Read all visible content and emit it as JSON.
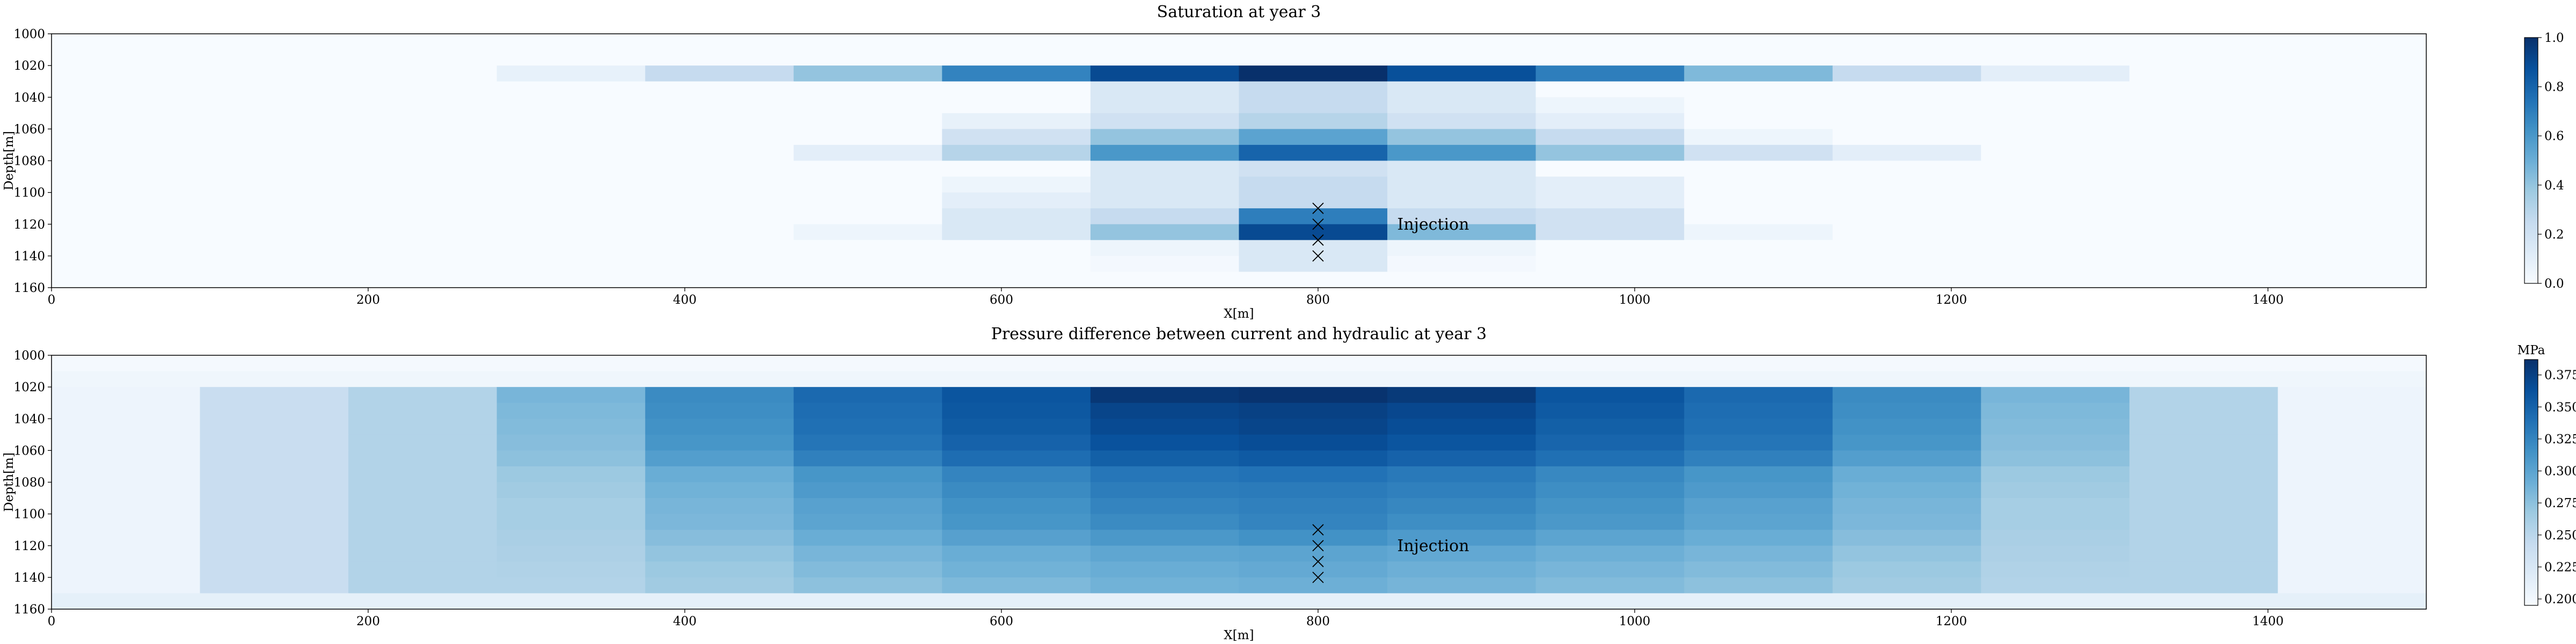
{
  "colors": {
    "cmap": [
      "#f7fbff",
      "#deebf7",
      "#c6dbef",
      "#9ecae1",
      "#6baed6",
      "#4292c6",
      "#2171b5",
      "#08519c",
      "#08306b"
    ],
    "marker": "#000000"
  },
  "chart_data": [
    {
      "type": "heatmap",
      "title": "Saturation at year 3",
      "xlabel": "X[m]",
      "ylabel": "Depth[m]",
      "xlim": [
        0,
        1500
      ],
      "ylim": [
        1160,
        1000
      ],
      "xticks": [
        "0",
        "200",
        "400",
        "600",
        "800",
        "1000",
        "1200",
        "1400"
      ],
      "yticks": [
        "1000",
        "1020",
        "1040",
        "1060",
        "1080",
        "1100",
        "1120",
        "1140",
        "1160"
      ],
      "x_edges": [
        0,
        93.75,
        187.5,
        281.25,
        375,
        468.75,
        562.5,
        656.25,
        750,
        843.75,
        937.5,
        1031.25,
        1125,
        1218.75,
        1312.5,
        1406.25,
        1500
      ],
      "y_edges": [
        1000,
        1020,
        1030,
        1040,
        1050,
        1060,
        1070,
        1080,
        1090,
        1100,
        1110,
        1120,
        1130,
        1140,
        1150,
        1160
      ],
      "values": [
        [
          0.0,
          0.0,
          0.0,
          0.0,
          0.0,
          0.0,
          0.0,
          0.0,
          0.0,
          0.0,
          0.0,
          0.0,
          0.0,
          0.0,
          0.0,
          0.0
        ],
        [
          0.0,
          0.0,
          0.0,
          0.08,
          0.25,
          0.4,
          0.68,
          0.9,
          1.0,
          0.88,
          0.7,
          0.45,
          0.25,
          0.1,
          0.0,
          0.0
        ],
        [
          0.0,
          0.0,
          0.0,
          0.0,
          0.0,
          0.0,
          0.0,
          0.15,
          0.25,
          0.15,
          0.0,
          0.0,
          0.0,
          0.0,
          0.0,
          0.0
        ],
        [
          0.0,
          0.0,
          0.0,
          0.0,
          0.0,
          0.0,
          0.0,
          0.15,
          0.25,
          0.15,
          0.05,
          0.0,
          0.0,
          0.0,
          0.0,
          0.0
        ],
        [
          0.0,
          0.0,
          0.0,
          0.0,
          0.0,
          0.0,
          0.08,
          0.2,
          0.3,
          0.2,
          0.1,
          0.0,
          0.0,
          0.0,
          0.0,
          0.0
        ],
        [
          0.0,
          0.0,
          0.0,
          0.0,
          0.0,
          0.0,
          0.2,
          0.4,
          0.55,
          0.4,
          0.25,
          0.05,
          0.0,
          0.0,
          0.0,
          0.0
        ],
        [
          0.0,
          0.0,
          0.0,
          0.0,
          0.0,
          0.1,
          0.3,
          0.6,
          0.8,
          0.6,
          0.4,
          0.2,
          0.1,
          0.0,
          0.0,
          0.0
        ],
        [
          0.0,
          0.0,
          0.0,
          0.0,
          0.0,
          0.0,
          0.0,
          0.15,
          0.2,
          0.15,
          0.0,
          0.0,
          0.0,
          0.0,
          0.0,
          0.0
        ],
        [
          0.0,
          0.0,
          0.0,
          0.0,
          0.0,
          0.0,
          0.05,
          0.15,
          0.25,
          0.15,
          0.1,
          0.0,
          0.0,
          0.0,
          0.0,
          0.0
        ],
        [
          0.0,
          0.0,
          0.0,
          0.0,
          0.0,
          0.0,
          0.1,
          0.15,
          0.25,
          0.15,
          0.1,
          0.0,
          0.0,
          0.0,
          0.0,
          0.0
        ],
        [
          0.0,
          0.0,
          0.0,
          0.0,
          0.0,
          0.0,
          0.15,
          0.25,
          0.7,
          0.25,
          0.2,
          0.0,
          0.0,
          0.0,
          0.0,
          0.0
        ],
        [
          0.0,
          0.0,
          0.0,
          0.0,
          0.0,
          0.05,
          0.15,
          0.4,
          0.9,
          0.45,
          0.2,
          0.05,
          0.0,
          0.0,
          0.0,
          0.0
        ],
        [
          0.0,
          0.0,
          0.0,
          0.0,
          0.0,
          0.0,
          0.0,
          0.05,
          0.15,
          0.05,
          0.0,
          0.0,
          0.0,
          0.0,
          0.0,
          0.0
        ],
        [
          0.0,
          0.0,
          0.0,
          0.0,
          0.0,
          0.0,
          0.0,
          0.02,
          0.15,
          0.02,
          0.0,
          0.0,
          0.0,
          0.0,
          0.0,
          0.0
        ],
        [
          0.0,
          0.0,
          0.0,
          0.0,
          0.0,
          0.0,
          0.0,
          0.0,
          0.0,
          0.0,
          0.0,
          0.0,
          0.0,
          0.0,
          0.0,
          0.0
        ]
      ],
      "colorbar": {
        "vmin": 0.0,
        "vmax": 1.0,
        "ticks": [
          "0.0",
          "0.2",
          "0.4",
          "0.6",
          "0.8",
          "1.0"
        ],
        "tick_values": [
          0.0,
          0.2,
          0.4,
          0.6,
          0.8,
          1.0
        ],
        "label": ""
      },
      "markers": {
        "symbol": "x",
        "x": [
          800,
          800,
          800,
          800
        ],
        "y": [
          1110,
          1120,
          1130,
          1140
        ]
      },
      "annotation": {
        "text": "Injection",
        "x": 850,
        "y": 1120
      }
    },
    {
      "type": "heatmap",
      "title": "Pressure difference between current and hydraulic at year 3",
      "xlabel": "X[m]",
      "ylabel": "Depth[m]",
      "xlim": [
        0,
        1500
      ],
      "ylim": [
        1160,
        1000
      ],
      "xticks": [
        "0",
        "200",
        "400",
        "600",
        "800",
        "1000",
        "1200",
        "1400"
      ],
      "yticks": [
        "1000",
        "1020",
        "1040",
        "1060",
        "1080",
        "1100",
        "1120",
        "1140",
        "1160"
      ],
      "x_edges": [
        0,
        93.75,
        187.5,
        281.25,
        375,
        468.75,
        562.5,
        656.25,
        750,
        843.75,
        937.5,
        1031.25,
        1125,
        1218.75,
        1312.5,
        1406.25,
        1500
      ],
      "y_edges": [
        1000,
        1010,
        1020,
        1030,
        1040,
        1050,
        1060,
        1070,
        1080,
        1090,
        1100,
        1110,
        1120,
        1130,
        1140,
        1150,
        1160
      ],
      "values": [
        [
          0.198,
          0.198,
          0.198,
          0.198,
          0.198,
          0.198,
          0.198,
          0.198,
          0.198,
          0.198,
          0.198,
          0.198,
          0.198,
          0.198,
          0.198,
          0.198
        ],
        [
          0.203,
          0.203,
          0.203,
          0.203,
          0.203,
          0.203,
          0.203,
          0.203,
          0.203,
          0.203,
          0.203,
          0.203,
          0.203,
          0.203,
          0.203,
          0.203
        ],
        [
          0.205,
          0.24,
          0.255,
          0.285,
          0.32,
          0.345,
          0.36,
          0.382,
          0.385,
          0.38,
          0.36,
          0.345,
          0.32,
          0.285,
          0.255,
          0.205
        ],
        [
          0.205,
          0.24,
          0.255,
          0.282,
          0.318,
          0.342,
          0.358,
          0.372,
          0.375,
          0.37,
          0.356,
          0.342,
          0.318,
          0.282,
          0.255,
          0.205
        ],
        [
          0.205,
          0.24,
          0.255,
          0.28,
          0.315,
          0.34,
          0.355,
          0.368,
          0.372,
          0.366,
          0.352,
          0.34,
          0.315,
          0.28,
          0.255,
          0.205
        ],
        [
          0.205,
          0.24,
          0.255,
          0.278,
          0.312,
          0.336,
          0.35,
          0.362,
          0.366,
          0.36,
          0.348,
          0.336,
          0.312,
          0.278,
          0.255,
          0.205
        ],
        [
          0.205,
          0.24,
          0.255,
          0.275,
          0.305,
          0.328,
          0.342,
          0.352,
          0.356,
          0.35,
          0.34,
          0.328,
          0.305,
          0.275,
          0.255,
          0.205
        ],
        [
          0.205,
          0.24,
          0.255,
          0.268,
          0.292,
          0.312,
          0.325,
          0.335,
          0.338,
          0.333,
          0.322,
          0.312,
          0.292,
          0.268,
          0.255,
          0.205
        ],
        [
          0.205,
          0.24,
          0.255,
          0.265,
          0.288,
          0.308,
          0.32,
          0.33,
          0.332,
          0.328,
          0.318,
          0.308,
          0.288,
          0.265,
          0.255,
          0.205
        ],
        [
          0.205,
          0.24,
          0.255,
          0.262,
          0.285,
          0.302,
          0.315,
          0.325,
          0.328,
          0.323,
          0.313,
          0.302,
          0.285,
          0.262,
          0.255,
          0.205
        ],
        [
          0.205,
          0.24,
          0.255,
          0.262,
          0.283,
          0.3,
          0.312,
          0.32,
          0.325,
          0.318,
          0.31,
          0.3,
          0.283,
          0.262,
          0.255,
          0.205
        ],
        [
          0.205,
          0.24,
          0.255,
          0.26,
          0.278,
          0.292,
          0.303,
          0.31,
          0.315,
          0.308,
          0.3,
          0.292,
          0.278,
          0.26,
          0.255,
          0.205
        ],
        [
          0.205,
          0.24,
          0.255,
          0.258,
          0.272,
          0.285,
          0.292,
          0.298,
          0.3,
          0.296,
          0.29,
          0.285,
          0.272,
          0.258,
          0.255,
          0.205
        ],
        [
          0.205,
          0.24,
          0.255,
          0.256,
          0.268,
          0.28,
          0.288,
          0.292,
          0.295,
          0.29,
          0.285,
          0.28,
          0.268,
          0.256,
          0.255,
          0.205
        ],
        [
          0.205,
          0.24,
          0.255,
          0.255,
          0.265,
          0.275,
          0.282,
          0.288,
          0.29,
          0.286,
          0.28,
          0.275,
          0.265,
          0.255,
          0.255,
          0.205
        ],
        [
          0.212,
          0.212,
          0.212,
          0.212,
          0.212,
          0.212,
          0.212,
          0.212,
          0.212,
          0.212,
          0.212,
          0.212,
          0.212,
          0.212,
          0.212,
          0.212
        ]
      ],
      "colorbar": {
        "vmin": 0.195,
        "vmax": 0.387,
        "ticks": [
          "0.200",
          "0.225",
          "0.250",
          "0.275",
          "0.300",
          "0.325",
          "0.350",
          "0.375"
        ],
        "tick_values": [
          0.2,
          0.225,
          0.25,
          0.275,
          0.3,
          0.325,
          0.35,
          0.375
        ],
        "label": "MPa"
      },
      "markers": {
        "symbol": "x",
        "x": [
          800,
          800,
          800,
          800
        ],
        "y": [
          1110,
          1120,
          1130,
          1140
        ]
      },
      "annotation": {
        "text": "Injection",
        "x": 850,
        "y": 1120
      }
    }
  ]
}
